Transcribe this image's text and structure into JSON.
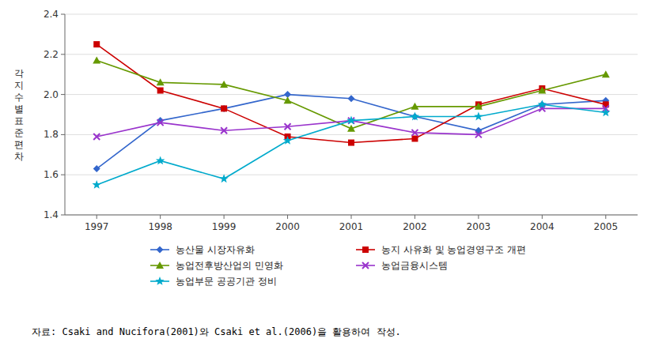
{
  "chart_data": {
    "type": "line",
    "y_label": "각지수별표준편차",
    "x": [
      1997,
      1998,
      1999,
      2000,
      2001,
      2002,
      2003,
      2004,
      2005
    ],
    "series": [
      {
        "name": "농산물 시장자유화",
        "color": "#3366cc",
        "marker": "diamond",
        "values": [
          1.63,
          1.87,
          1.93,
          2.0,
          1.98,
          1.89,
          1.82,
          1.95,
          1.97
        ]
      },
      {
        "name": "농지 사유화 및 농업경영구조 개편",
        "color": "#cc0000",
        "marker": "square",
        "values": [
          2.25,
          2.02,
          1.93,
          1.79,
          1.76,
          1.78,
          1.95,
          2.03,
          1.95
        ]
      },
      {
        "name": "농업전후방산업의 민영화",
        "color": "#669900",
        "marker": "triangle",
        "values": [
          2.17,
          2.06,
          2.05,
          1.97,
          1.83,
          1.94,
          1.94,
          2.02,
          2.1
        ]
      },
      {
        "name": "농업금융시스템",
        "color": "#9933cc",
        "marker": "x",
        "values": [
          1.79,
          1.86,
          1.82,
          1.84,
          1.87,
          1.81,
          1.8,
          1.93,
          1.93
        ]
      },
      {
        "name": "농업부문 공공기관 정비",
        "color": "#00aacc",
        "marker": "star",
        "values": [
          1.55,
          1.67,
          1.58,
          1.77,
          1.87,
          1.89,
          1.89,
          1.95,
          1.91
        ]
      }
    ],
    "xlim": [
      1996.5,
      2005.5
    ],
    "xticks": [
      1997,
      1998,
      1999,
      2000,
      2001,
      2002,
      2003,
      2004,
      2005
    ],
    "ylim": [
      1.4,
      2.4
    ],
    "yticks": [
      1.4,
      1.6,
      1.8,
      {
        "value": 2.0,
        "label": "2.0"
      },
      2.2,
      2.4
    ],
    "grid": true,
    "legend": "bottom",
    "annotations": [
      "자료: Csaki and Nucifora(2001)와 Csaki et al.(2006)을 활용하여 작성."
    ]
  }
}
